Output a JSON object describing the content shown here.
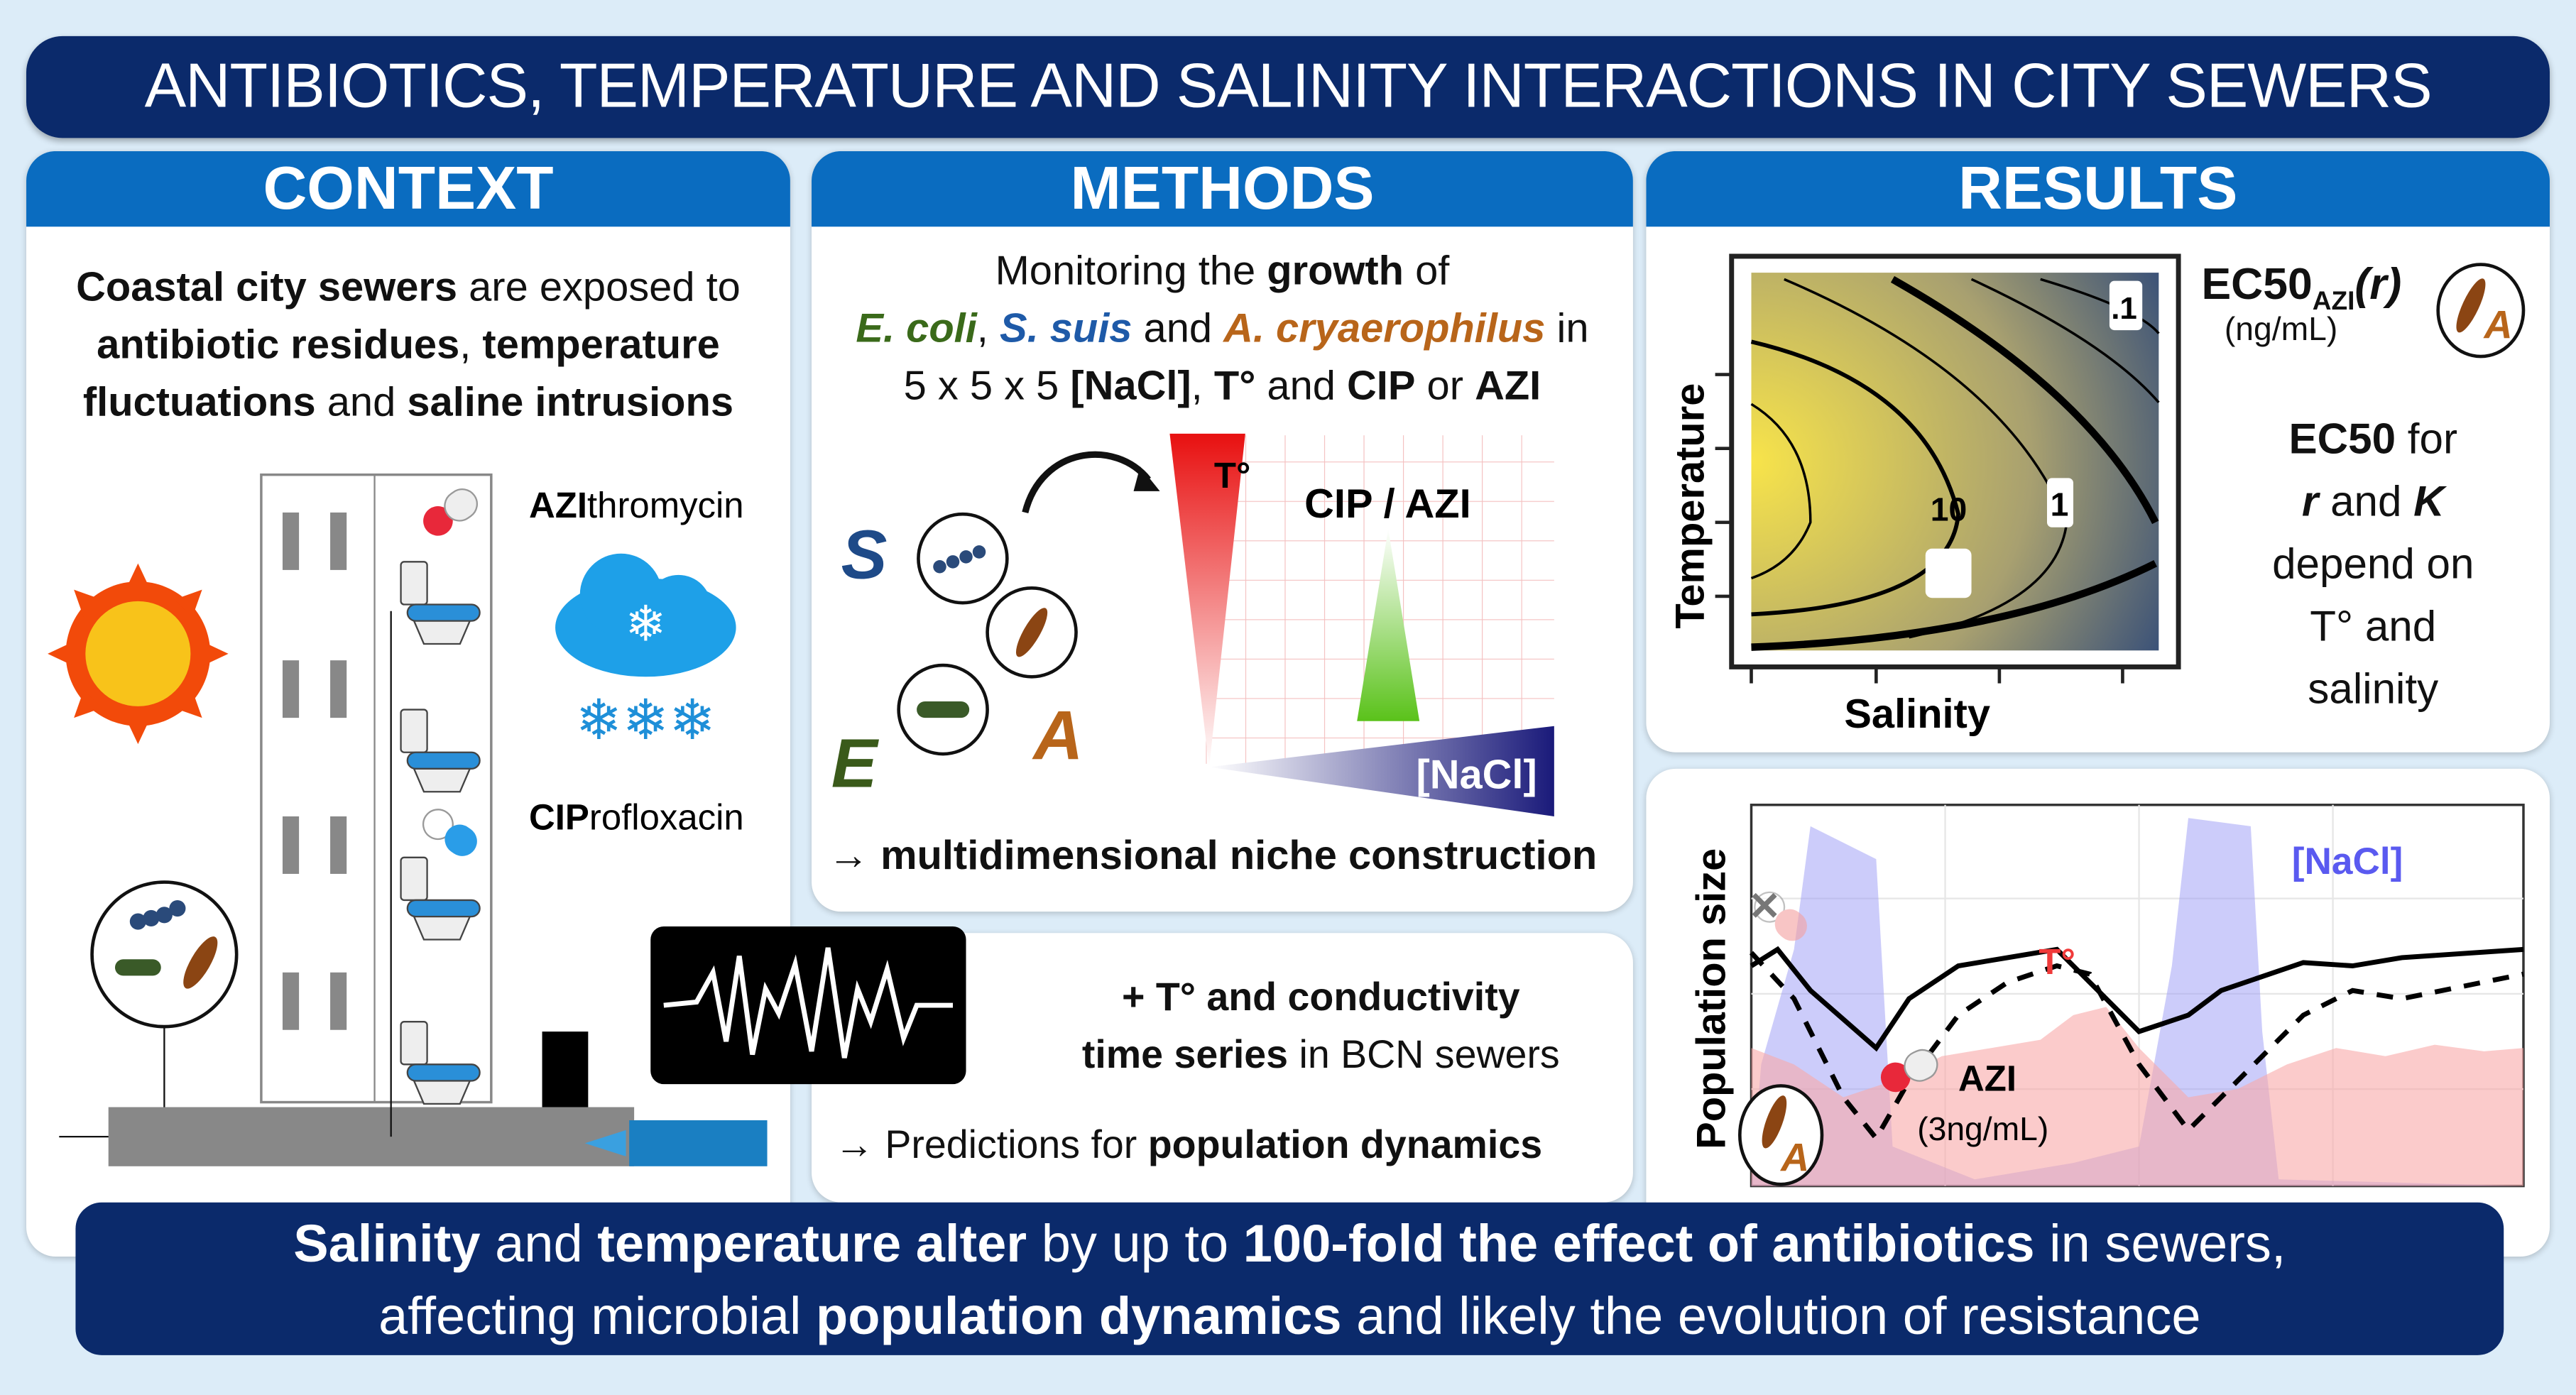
{
  "title": "ANTIBIOTICS, TEMPERATURE AND SALINITY INTERACTIONS IN CITY SEWERS",
  "context": {
    "header": "CONTEXT",
    "t1": "Coastal city sewers",
    "t2": " are exposed to",
    "t3": "antibiotic residues",
    "t4": ", ",
    "t5": "temperature",
    "t6": "fluctuations",
    "t7": " and ",
    "t8": "saline intrusions",
    "azi_b": "AZI",
    "azi_r": "thromycin",
    "cip_b": "CIP",
    "cip_r": "rofloxacin"
  },
  "methods": {
    "header": "METHODS",
    "l1a": "Monitoring the ",
    "l1b": "growth",
    "l1c": " of",
    "ecoli": "E. coli",
    "comma": ", ",
    "ssuis": "S. suis",
    "and": " and ",
    "acry": "A. cryaerophilus",
    "in": " in",
    "l3a": "5 x 5 x 5 ",
    "l3b": "[NaCl]",
    "l3c": ", ",
    "l3d": "T°",
    "l3e": " and ",
    "l3f": "CIP",
    "l3g": " or ",
    "l3h": "AZI",
    "letter_s": "S",
    "letter_e": "E",
    "letter_a": "A",
    "temp_label": "T°",
    "abx_label": "CIP / AZI",
    "nacl_label": "[NaCl]",
    "arrow": "→ ",
    "niche": "multidimensional niche construction",
    "plus": "+ T° and ",
    "conductivity": "conductivity",
    "ts": "time series",
    "ts2": " in BCN sewers",
    "pred_arrow": "→ Predictions for ",
    "pred_b": "population dynamics"
  },
  "results": {
    "header": "RESULTS",
    "ylabel": "Temperature",
    "xlabel": "Salinity",
    "contours": [
      ".1",
      "1",
      "10"
    ],
    "ec50": "EC50",
    "sub": "AZI",
    "r": "(r)",
    "units": "(ng/mL)",
    "badge": "A",
    "d1a": "EC50",
    "d1b": " for",
    "d2a": "r",
    "d2b": " and ",
    "d2c": "K",
    "d3": "depend on",
    "d4": "T° and",
    "d5": "salinity",
    "pop_ylabel": "Population size",
    "nacl": "[NaCl]",
    "temp": "T°",
    "azi": "AZI",
    "dose": "(3ng/mL)",
    "colors": {
      "nacl": "#5a5af0",
      "temp": "#f03a3a"
    }
  },
  "banner": {
    "a": "Salinity",
    "b": " and ",
    "c": "temperature alter",
    "d": " by up to ",
    "e": "100-fold the effect of antibiotics",
    "f": " in sewers,",
    "g": "affecting microbial ",
    "h": "population dynamics",
    "i": " and likely the evolution of resistance"
  }
}
